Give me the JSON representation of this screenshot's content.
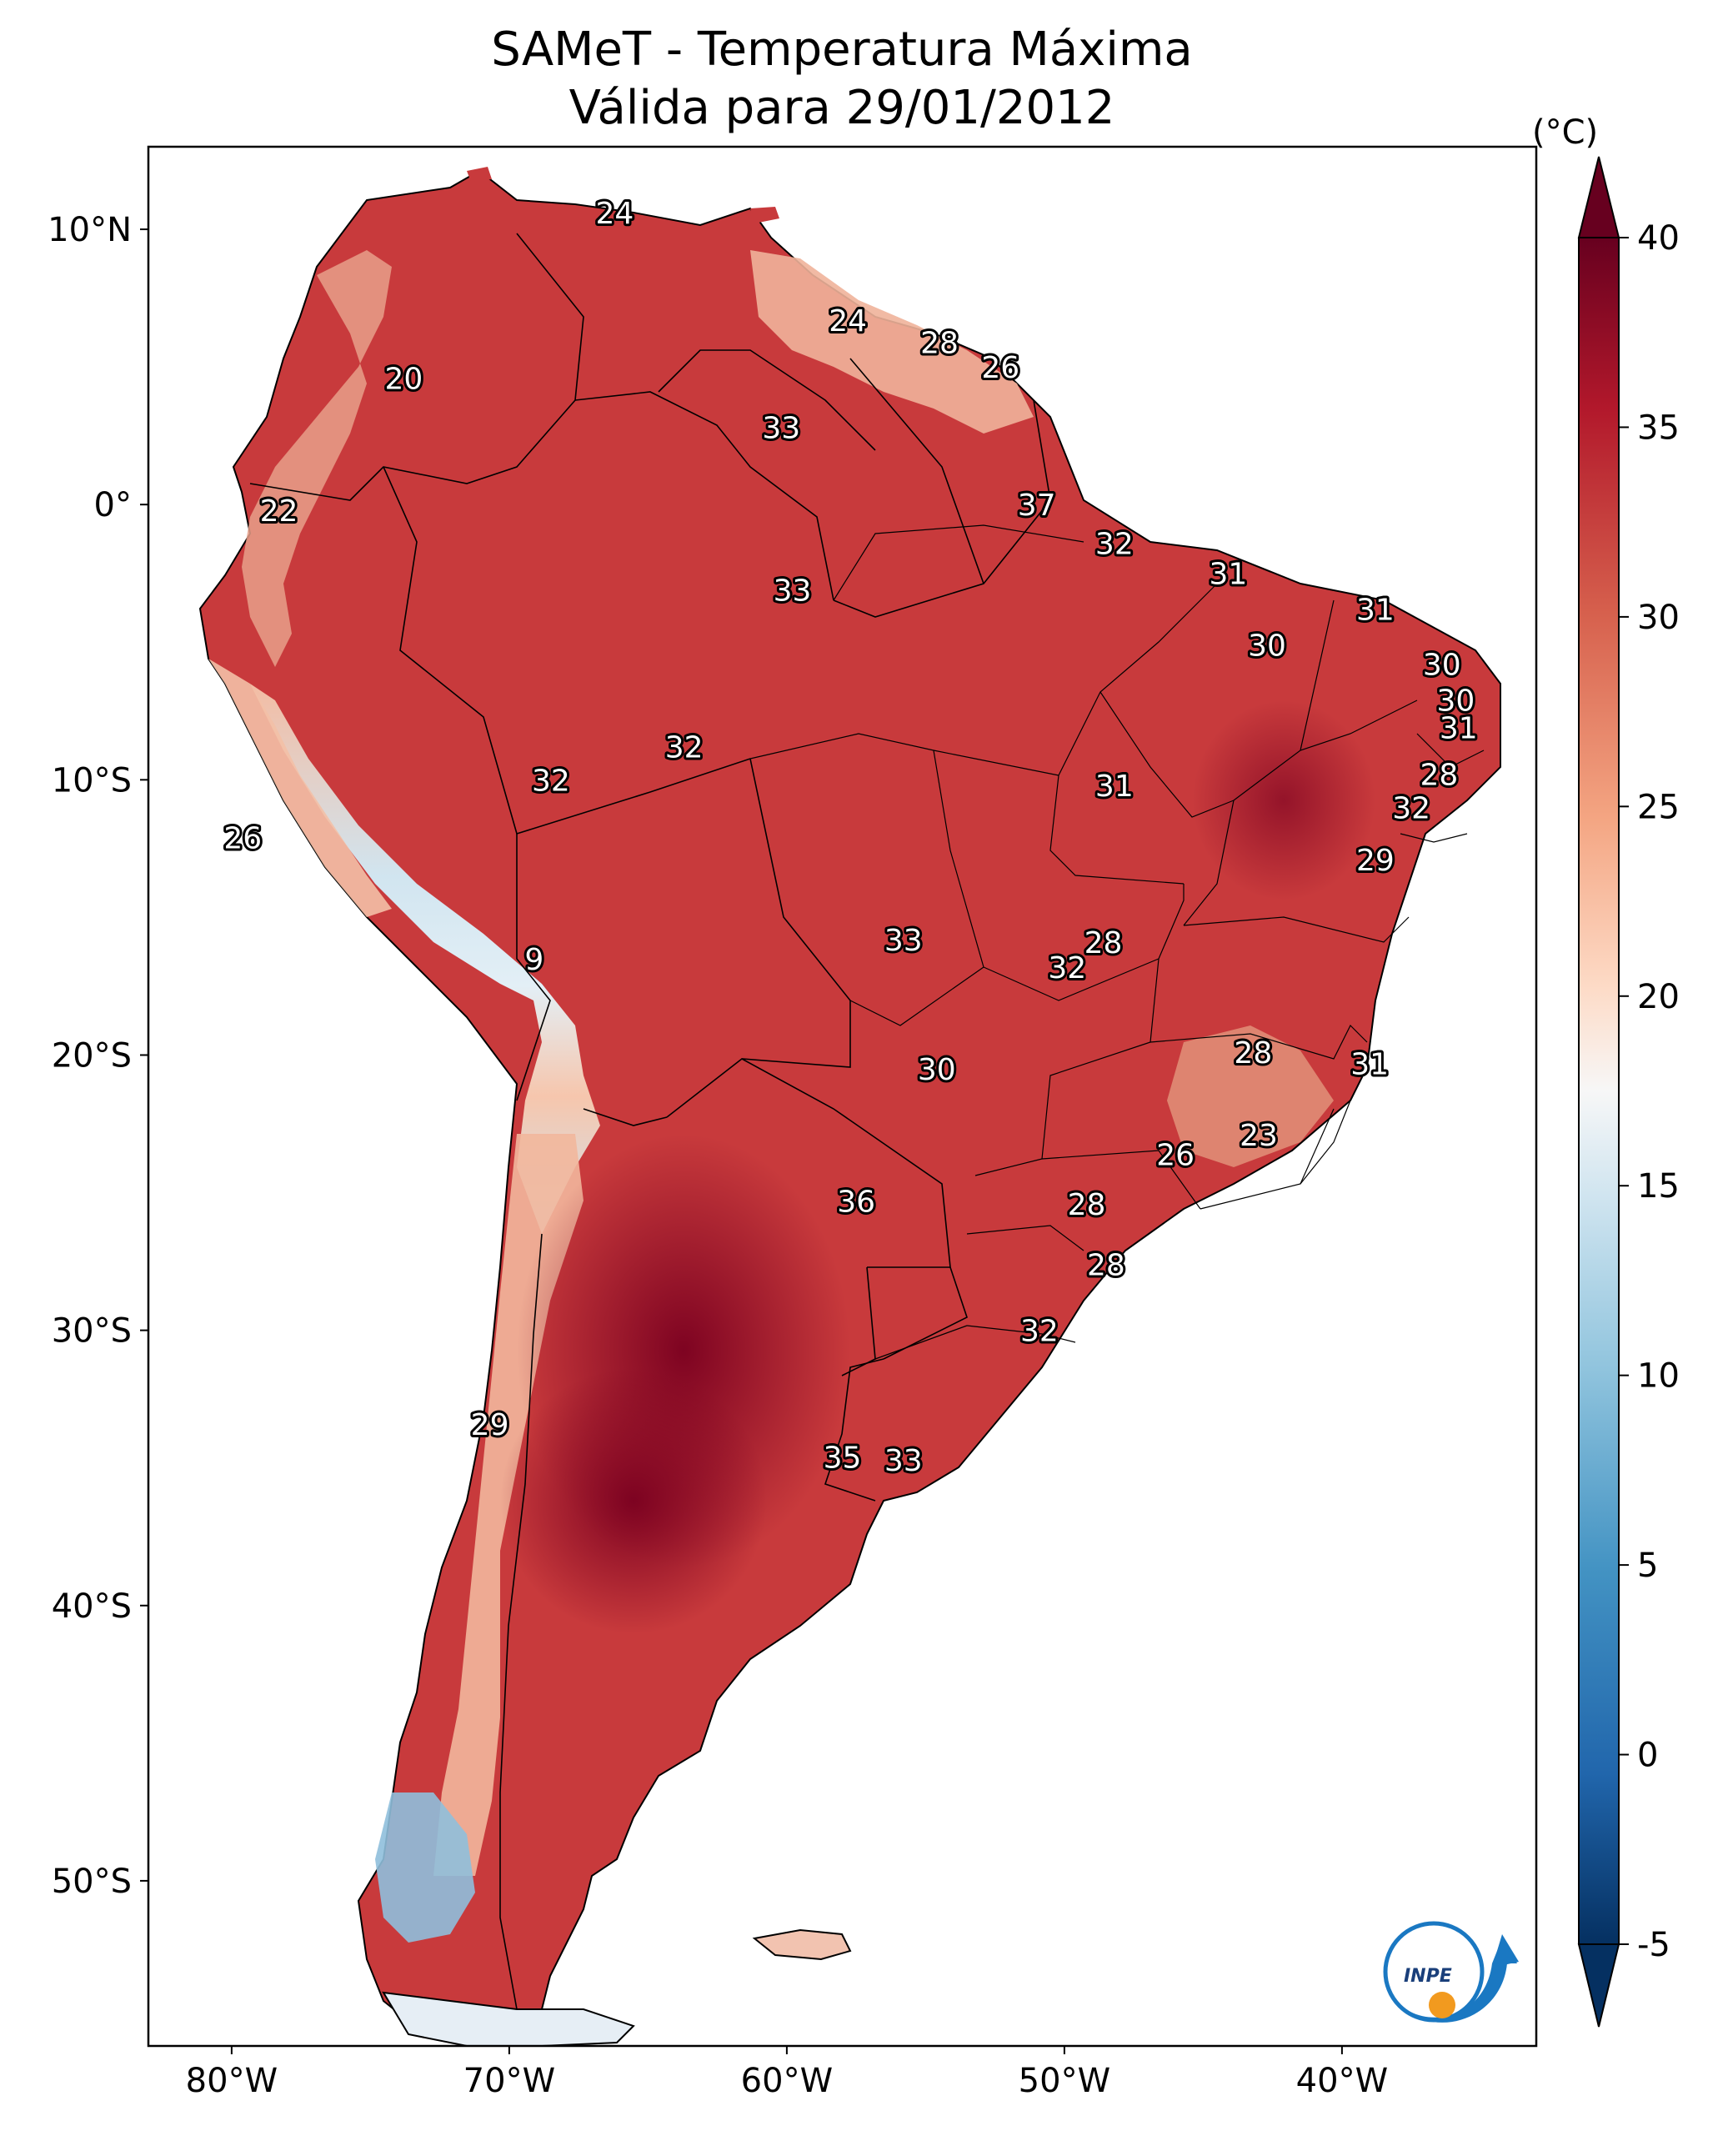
{
  "title": {
    "line1": "SAMeT - Temperatura Máxima",
    "line2": "Válida para 29/01/2012"
  },
  "map": {
    "extent": {
      "lon": [
        -83,
        -33
      ],
      "lat": [
        -56,
        13
      ]
    },
    "lat_ticks": [
      {
        "value": 10,
        "label": "10°N"
      },
      {
        "value": 0,
        "label": "0°"
      },
      {
        "value": -10,
        "label": "10°S"
      },
      {
        "value": -20,
        "label": "20°S"
      },
      {
        "value": -30,
        "label": "30°S"
      },
      {
        "value": -40,
        "label": "40°S"
      },
      {
        "value": -50,
        "label": "50°S"
      }
    ],
    "lon_ticks": [
      {
        "value": -80,
        "label": "80°W"
      },
      {
        "value": -70,
        "label": "70°W"
      },
      {
        "value": -60,
        "label": "60°W"
      },
      {
        "value": -50,
        "label": "50°W"
      },
      {
        "value": -40,
        "label": "40°W"
      }
    ],
    "station_values": [
      {
        "lon": -66.2,
        "lat": 10.6,
        "label": "24"
      },
      {
        "lon": -57.8,
        "lat": 6.7,
        "label": "24"
      },
      {
        "lon": -54.5,
        "lat": 5.9,
        "label": "28"
      },
      {
        "lon": -52.3,
        "lat": 5.0,
        "label": "26"
      },
      {
        "lon": -73.8,
        "lat": 4.6,
        "label": "20"
      },
      {
        "lon": -60.2,
        "lat": 2.8,
        "label": "33"
      },
      {
        "lon": -51.0,
        "lat": 0.0,
        "label": "37"
      },
      {
        "lon": -48.2,
        "lat": -1.4,
        "label": "32"
      },
      {
        "lon": -78.3,
        "lat": -0.2,
        "label": "22"
      },
      {
        "lon": -44.1,
        "lat": -2.5,
        "label": "31"
      },
      {
        "lon": -59.8,
        "lat": -3.1,
        "label": "33"
      },
      {
        "lon": -38.8,
        "lat": -3.8,
        "label": "31"
      },
      {
        "lon": -42.7,
        "lat": -5.1,
        "label": "30"
      },
      {
        "lon": -36.4,
        "lat": -5.8,
        "label": "30"
      },
      {
        "lon": -35.9,
        "lat": -7.1,
        "label": "30"
      },
      {
        "lon": -35.8,
        "lat": -8.1,
        "label": "31"
      },
      {
        "lon": -36.5,
        "lat": -9.8,
        "label": "28"
      },
      {
        "lon": -37.5,
        "lat": -11.0,
        "label": "32"
      },
      {
        "lon": -63.7,
        "lat": -8.8,
        "label": "32"
      },
      {
        "lon": -68.5,
        "lat": -10.0,
        "label": "32"
      },
      {
        "lon": -48.2,
        "lat": -10.2,
        "label": "31"
      },
      {
        "lon": -38.8,
        "lat": -12.9,
        "label": "29"
      },
      {
        "lon": -79.6,
        "lat": -12.1,
        "label": "26"
      },
      {
        "lon": -55.8,
        "lat": -15.8,
        "label": "33"
      },
      {
        "lon": -48.6,
        "lat": -15.9,
        "label": "28"
      },
      {
        "lon": -49.9,
        "lat": -16.8,
        "label": "32"
      },
      {
        "lon": -69.1,
        "lat": -16.5,
        "label": "9"
      },
      {
        "lon": -43.2,
        "lat": -19.9,
        "label": "28"
      },
      {
        "lon": -39.0,
        "lat": -20.3,
        "label": "31"
      },
      {
        "lon": -54.6,
        "lat": -20.5,
        "label": "30"
      },
      {
        "lon": -43.0,
        "lat": -22.9,
        "label": "23"
      },
      {
        "lon": -46.0,
        "lat": -23.6,
        "label": "26"
      },
      {
        "lon": -57.5,
        "lat": -25.3,
        "label": "36"
      },
      {
        "lon": -49.2,
        "lat": -25.4,
        "label": "28"
      },
      {
        "lon": -48.5,
        "lat": -27.6,
        "label": "28"
      },
      {
        "lon": -50.9,
        "lat": -30.0,
        "label": "32"
      },
      {
        "lon": -70.7,
        "lat": -33.4,
        "label": "29"
      },
      {
        "lon": -58.0,
        "lat": -34.6,
        "label": "35"
      },
      {
        "lon": -55.8,
        "lat": -34.7,
        "label": "33"
      }
    ],
    "logo_text": "INPE"
  },
  "colorbar": {
    "unit_label": "(°C)",
    "min": -5,
    "max": 40,
    "ticks": [
      {
        "value": 40,
        "label": "40"
      },
      {
        "value": 35,
        "label": "35"
      },
      {
        "value": 30,
        "label": "30"
      },
      {
        "value": 25,
        "label": "25"
      },
      {
        "value": 20,
        "label": "20"
      },
      {
        "value": 15,
        "label": "15"
      },
      {
        "value": 10,
        "label": "10"
      },
      {
        "value": 5,
        "label": "5"
      },
      {
        "value": 0,
        "label": "0"
      },
      {
        "value": -5,
        "label": "-5"
      }
    ],
    "colors": {
      "max_color": "#67001f",
      "min_color": "#053061",
      "land_hot": "#c4363a",
      "land_very_hot": "#8f0d24",
      "land_warm": "#e69073",
      "land_cool": "#d1e5f0",
      "land_cold": "#5c9ecb"
    }
  }
}
